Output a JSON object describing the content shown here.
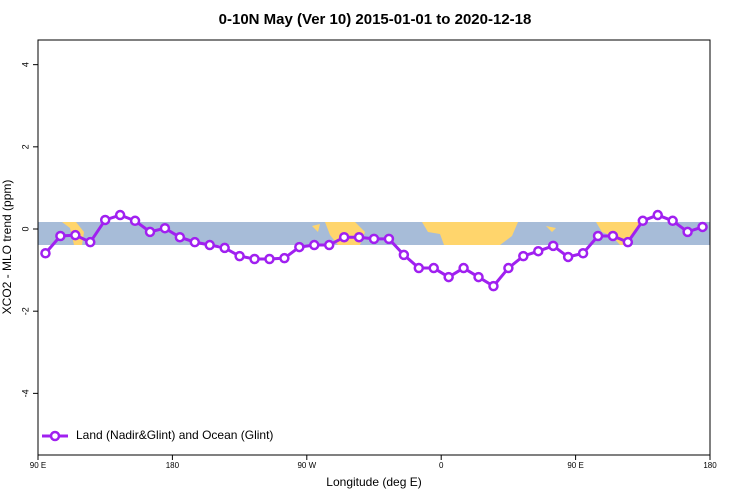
{
  "chart_data": {
    "type": "line",
    "title": "0-10N May (Ver 10)   2015-01-01 to 2020-12-18",
    "xlabel": "Longitude (deg E)",
    "ylabel": "XCO2 - MLO trend (ppm)",
    "x": [
      95,
      105,
      115,
      125,
      135,
      145,
      155,
      165,
      175,
      185,
      195,
      205,
      215,
      225,
      235,
      245,
      255,
      265,
      275,
      285,
      295,
      305,
      315,
      325,
      335,
      345,
      355,
      365,
      375,
      385,
      395,
      405,
      415,
      425,
      435,
      445,
      455,
      465,
      475,
      485,
      495,
      505,
      515,
      525,
      535
    ],
    "series": [
      {
        "name": "Land (Nadir&Glint) and Ocean (Glint)",
        "color": "#a020f0",
        "values": [
          -0.59,
          -0.17,
          -0.15,
          -0.32,
          0.22,
          0.34,
          0.2,
          -0.07,
          0.02,
          -0.2,
          -0.32,
          -0.39,
          -0.46,
          -0.66,
          -0.73,
          -0.73,
          -0.71,
          -0.44,
          -0.39,
          -0.39,
          -0.2,
          -0.2,
          -0.24,
          -0.24,
          -0.63,
          -0.95,
          -0.95,
          -1.17,
          -0.95,
          -1.17,
          -1.39,
          -0.95,
          -0.66,
          -0.54,
          -0.41,
          -0.68,
          -0.59,
          -0.17,
          -0.17,
          -0.32,
          0.2,
          0.34,
          0.2,
          -0.07,
          0.05
        ]
      }
    ],
    "xlim": [
      90,
      540
    ],
    "xticks": [
      {
        "value": 90,
        "label": "90 E"
      },
      {
        "value": 180,
        "label": "180"
      },
      {
        "value": 270,
        "label": "90 W"
      },
      {
        "value": 360,
        "label": "0"
      },
      {
        "value": 450,
        "label": "90 E"
      },
      {
        "value": 540,
        "label": "180"
      }
    ],
    "ylim": [
      -5.5,
      4.6
    ],
    "yticks": [
      -4,
      -2,
      0,
      2,
      4
    ],
    "legend": "bottom-left"
  }
}
